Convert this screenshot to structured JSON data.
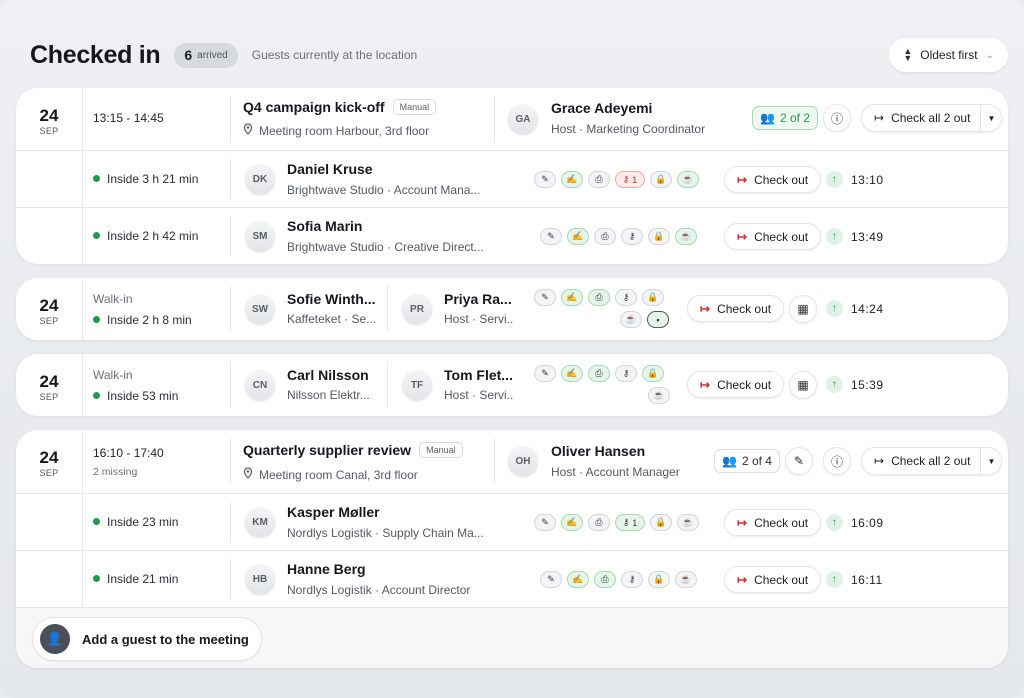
{
  "header": {
    "title": "Checked in",
    "arrived_count": "6",
    "arrived_label": "arrived",
    "subtitle": "Guests currently at the location",
    "sort_label": "Oldest first"
  },
  "meetings": [
    {
      "day": "24",
      "month": "SEP",
      "time": "13:15 - 14:45",
      "title": "Q4 campaign kick-off",
      "badge": "Manual",
      "location": "Meeting room Harbour, 3rd floor",
      "host_initials": "GA",
      "host_name": "Grace Adeyemi",
      "host_role": "Host · Marketing Coordinator",
      "guest_count": "2 of 2",
      "checkout_all_label": "Check all 2 out",
      "guests": [
        {
          "status": "Inside 3 h 21 min",
          "initials": "DK",
          "name": "Daniel Kruse",
          "company": "Brightwave Studio · Account Mana...",
          "key_count": "1",
          "checkout_label": "Check out",
          "checkin_time": "13:10"
        },
        {
          "status": "Inside 2 h 42 min",
          "initials": "SM",
          "name": "Sofia Marin",
          "company": "Brightwave Studio · Creative Direct...",
          "checkout_label": "Check out",
          "checkin_time": "13:49"
        }
      ]
    },
    {
      "day": "24",
      "month": "SEP",
      "missing": "2 missing",
      "time": "16:10 - 17:40",
      "title": "Quarterly supplier review",
      "badge": "Manual",
      "location": "Meeting room Canal, 3rd floor",
      "host_initials": "OH",
      "host_name": "Oliver Hansen",
      "host_role": "Host · Account Manager",
      "guest_count": "2 of 4",
      "checkout_all_label": "Check all 2 out",
      "guests": [
        {
          "status": "Inside 23 min",
          "initials": "KM",
          "name": "Kasper Møller",
          "company": "Nordlys Logistik · Supply Chain Ma...",
          "key_count": "1",
          "checkout_label": "Check out",
          "checkin_time": "16:09"
        },
        {
          "status": "Inside 21 min",
          "initials": "HB",
          "name": "Hanne Berg",
          "company": "Nordlys Logistik · Account Director",
          "checkout_label": "Check out",
          "checkin_time": "16:11"
        }
      ]
    }
  ],
  "walkins": [
    {
      "day": "24",
      "month": "SEP",
      "type": "Walk-in",
      "status": "Inside 2 h 8 min",
      "guest_initials": "SW",
      "guest_name": "Sofie Winth...",
      "guest_company": "Kaffeteket · Se...",
      "host_initials": "PR",
      "host_name": "Priya Ra...",
      "host_role": "Host · Servi...",
      "checkout_label": "Check out",
      "checkin_time": "14:24"
    },
    {
      "day": "24",
      "month": "SEP",
      "type": "Walk-in",
      "status": "Inside 53 min",
      "guest_initials": "CN",
      "guest_name": "Carl Nilsson",
      "guest_company": "Nilsson Elektr...",
      "host_initials": "TF",
      "host_name": "Tom Flet...",
      "host_role": "Host · Servi...",
      "checkout_label": "Check out",
      "checkin_time": "15:39"
    }
  ],
  "footer": {
    "add_guest_label": "Add a guest to the meeting"
  },
  "colors": {
    "accent_green": "#1e9b47",
    "checkout_red": "#d0312d",
    "key_red": "#c62828"
  }
}
